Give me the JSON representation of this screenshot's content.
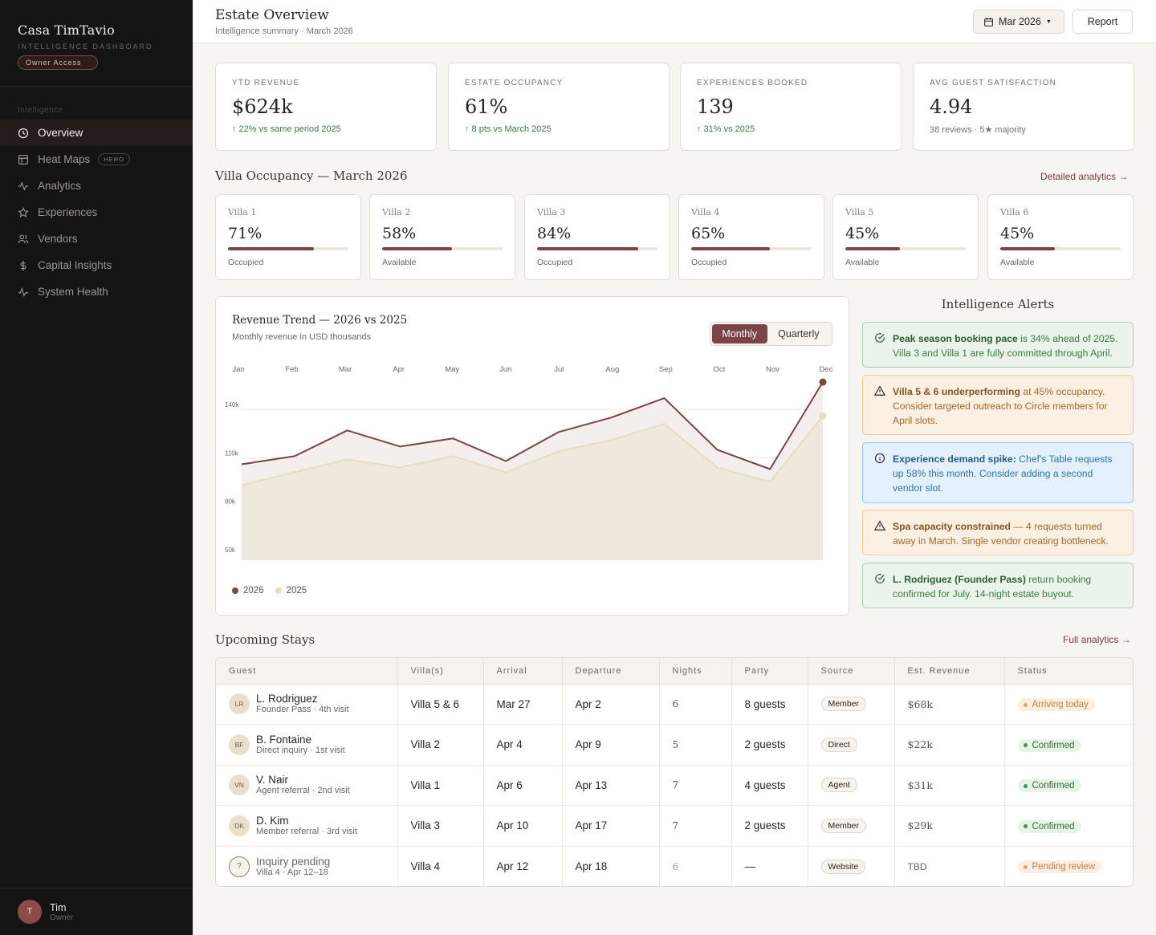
{
  "sidebar": {
    "brand": "Casa TimTavio",
    "subtitle": "Intelligence Dashboard",
    "access_badge": "Owner Access",
    "section_label": "Intelligence",
    "items": [
      {
        "label": "Overview",
        "icon": "clock-icon",
        "active": true
      },
      {
        "label": "Heat Maps",
        "icon": "grid-icon",
        "badge": "HERO"
      },
      {
        "label": "Analytics",
        "icon": "pulse-icon"
      },
      {
        "label": "Experiences",
        "icon": "star-icon"
      },
      {
        "label": "Vendors",
        "icon": "users-icon"
      },
      {
        "label": "Capital Insights",
        "icon": "dollar-icon"
      },
      {
        "label": "System Health",
        "icon": "activity-icon"
      }
    ],
    "user": {
      "initial": "T",
      "name": "Tim",
      "role": "Owner"
    }
  },
  "header": {
    "title": "Estate Overview",
    "subtitle": "Intelligence summary · March 2026",
    "date_label": "Mar 2026",
    "report_label": "Report"
  },
  "kpis": [
    {
      "label": "YTD Revenue",
      "value": "$624k",
      "note": "↑ 22% vs same period 2025",
      "tone": "pos"
    },
    {
      "label": "Estate Occupancy",
      "value": "61%",
      "note": "↑ 8 pts vs March 2025",
      "tone": "pos"
    },
    {
      "label": "Experiences Booked",
      "value": "139",
      "note": "↑ 31% vs 2025",
      "tone": "pos"
    },
    {
      "label": "Avg Guest Satisfaction",
      "value": "4.94",
      "note": "38 reviews · 5★ majority",
      "tone": "neu"
    }
  ],
  "occupancy": {
    "title": "Villa Occupancy — March 2026",
    "link": "Detailed analytics →",
    "villas": [
      {
        "name": "Villa 1",
        "pct_label": "71%",
        "fill": 0.71,
        "status": "Occupied"
      },
      {
        "name": "Villa 2",
        "pct_label": "58%",
        "fill": 0.58,
        "status": "Available"
      },
      {
        "name": "Villa 3",
        "pct_label": "84%",
        "fill": 0.84,
        "status": "Occupied"
      },
      {
        "name": "Villa 4",
        "pct_label": "65%",
        "fill": 0.65,
        "status": "Occupied"
      },
      {
        "name": "Villa 5",
        "pct_label": "45%",
        "fill": 0.45,
        "status": "Available"
      },
      {
        "name": "Villa 6",
        "pct_label": "45%",
        "fill": 0.45,
        "status": "Available"
      }
    ]
  },
  "chart": {
    "title": "Revenue Trend — 2026 vs 2025",
    "subtitle": "Monthly revenue in USD thousands",
    "toggle_on": "Monthly",
    "toggle_off": "Quarterly"
  },
  "chart_data": {
    "type": "area",
    "title": "Revenue Trend — 2026 vs 2025",
    "subtitle": "Monthly revenue in USD thousands",
    "categories": [
      "Jan",
      "Feb",
      "Mar",
      "Apr",
      "May",
      "Jun",
      "Jul",
      "Aug",
      "Sep",
      "Oct",
      "Nov",
      "Dec"
    ],
    "yticks": [
      50,
      80,
      110,
      140
    ],
    "ytick_labels": [
      "50k",
      "80k",
      "110k",
      "140k"
    ],
    "ylim": [
      47,
      160
    ],
    "grid": true,
    "legend_position": "bottom-left",
    "series": [
      {
        "name": "2026",
        "color": "#7c4446",
        "values": [
          106,
          111,
          127,
          117,
          122,
          108,
          126,
          135,
          147,
          115,
          103,
          157
        ]
      },
      {
        "name": "2025",
        "color": "#e8dcc4",
        "values": [
          93,
          101,
          109,
          104,
          111,
          101,
          114,
          121,
          131,
          104,
          95,
          136
        ]
      }
    ]
  },
  "alerts": {
    "title": "Intelligence Alerts",
    "items": [
      {
        "tone": "green",
        "icon": "check-circle-icon",
        "bold": "Peak season booking pace",
        "text": " is 34% ahead of 2025. Villa 3 and Villa 1 are fully committed through April."
      },
      {
        "tone": "amber",
        "icon": "warning-icon",
        "bold": "Villa 5 & 6 underperforming",
        "text": " at 45% occupancy. Consider targeted outreach to Circle members for April slots."
      },
      {
        "tone": "blue",
        "icon": "info-icon",
        "bold": "Experience demand spike:",
        "text": " Chef's Table requests up 58% this month. Consider adding a second vendor slot."
      },
      {
        "tone": "amber",
        "icon": "warning-icon",
        "bold": "Spa capacity constrained",
        "text": " — 4 requests turned away in March. Single vendor creating bottleneck."
      },
      {
        "tone": "green",
        "icon": "check-circle-icon",
        "bold": "L. Rodriguez (Founder Pass)",
        "text": " return booking confirmed for July. 14-night estate buyout."
      }
    ]
  },
  "stays": {
    "title": "Upcoming Stays",
    "link": "Full analytics →",
    "columns": [
      "Guest",
      "Villa(s)",
      "Arrival",
      "Departure",
      "Nights",
      "Party",
      "Source",
      "Est. Revenue",
      "Status"
    ],
    "rows": [
      {
        "initials": "LR",
        "name": "L. Rodriguez",
        "sub": "Founder Pass · 4th visit",
        "villa": "Villa 5 & 6",
        "arrival": "Mar 27",
        "departure": "Apr 2",
        "nights": "6",
        "party": "8 guests",
        "source": "Member",
        "revenue": "$68k",
        "status": "Arriving today",
        "status_kind": "arr"
      },
      {
        "initials": "BF",
        "name": "B. Fontaine",
        "sub": "Direct inquiry · 1st visit",
        "villa": "Villa 2",
        "arrival": "Apr 4",
        "departure": "Apr 9",
        "nights": "5",
        "party": "2 guests",
        "source": "Direct",
        "revenue": "$22k",
        "status": "Confirmed",
        "status_kind": "conf"
      },
      {
        "initials": "VN",
        "name": "V. Nair",
        "sub": "Agent referral · 2nd visit",
        "villa": "Villa 1",
        "arrival": "Apr 6",
        "departure": "Apr 13",
        "nights": "7",
        "party": "4 guests",
        "source": "Agent",
        "revenue": "$31k",
        "status": "Confirmed",
        "status_kind": "conf"
      },
      {
        "initials": "DK",
        "name": "D. Kim",
        "sub": "Member referral · 3rd visit",
        "villa": "Villa 3",
        "arrival": "Apr 10",
        "departure": "Apr 17",
        "nights": "7",
        "party": "2 guests",
        "source": "Member",
        "revenue": "$29k",
        "status": "Confirmed",
        "status_kind": "conf"
      },
      {
        "initials": "?",
        "name": "Inquiry pending",
        "sub": "Villa 4 · Apr 12–18",
        "villa": "Villa 4",
        "arrival": "Apr 12",
        "departure": "Apr 18",
        "nights": "6",
        "party": "—",
        "source": "Website",
        "revenue": "TBD",
        "status": "Pending review",
        "status_kind": "pend"
      }
    ]
  }
}
